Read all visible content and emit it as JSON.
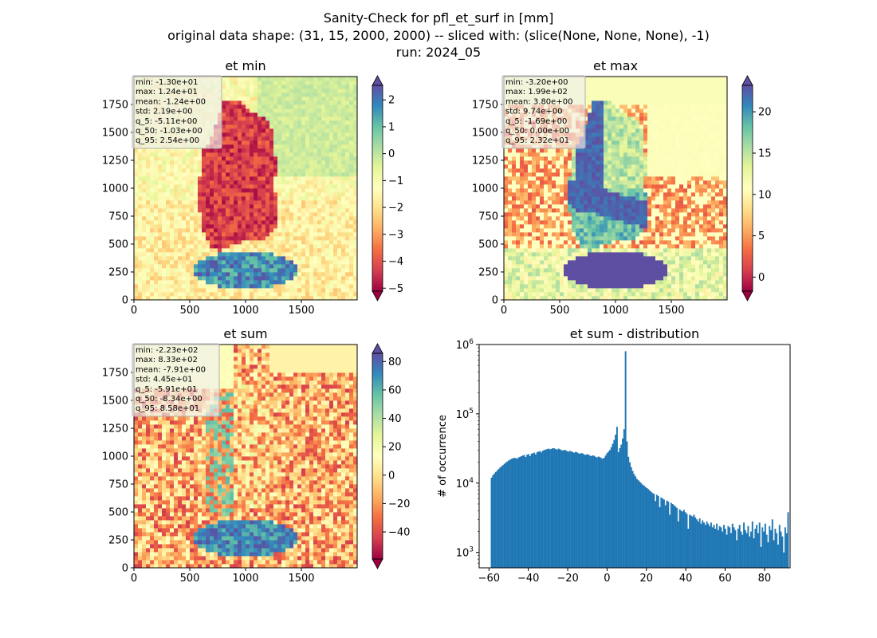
{
  "figure": {
    "title_lines": [
      "Sanity-Check for pfl_et_surf in [mm]",
      "original data shape: (31, 15, 2000, 2000) -- sliced with: (slice(None, None, None), -1)",
      "run: 2024_05"
    ]
  },
  "colors": {
    "spectral": [
      "#9e0142",
      "#d53e4f",
      "#f46d43",
      "#fdae61",
      "#fee08b",
      "#ffffbf",
      "#e6f598",
      "#abdda4",
      "#66c2a5",
      "#3288bd",
      "#5e4fa2"
    ],
    "hist_bar": "#1f77b4",
    "stats_box_bg": "#f0f0f0",
    "stats_box_border": "#b0b0b0"
  },
  "chart_data": [
    {
      "type": "heatmap",
      "title": "et min",
      "xlim": [
        0,
        2000
      ],
      "ylim": [
        0,
        2000
      ],
      "xticks": [
        "0",
        "500",
        "1000",
        "1500"
      ],
      "yticks": [
        "0",
        "250",
        "500",
        "750",
        "1000",
        "1250",
        "1500",
        "1750"
      ],
      "colormap": "Spectral",
      "clim": [
        -5.11,
        2.54
      ],
      "colorbar_ticks": [
        "2",
        "1",
        "0",
        "−1",
        "−2",
        "−3",
        "−4",
        "−5"
      ],
      "colorbar_tick_values": [
        2,
        1,
        0,
        -1,
        -2,
        -3,
        -4,
        -5
      ],
      "stats": [
        "min: -1.30e+01",
        "max: 1.24e+01",
        "mean: -1.24e+00",
        "std: 2.19e+00",
        "q_5: -5.11e+00",
        "q_50: -1.03e+00",
        "q_95: 2.54e+00"
      ],
      "texture": "min"
    },
    {
      "type": "heatmap",
      "title": "et max",
      "xlim": [
        0,
        2000
      ],
      "ylim": [
        0,
        2000
      ],
      "xticks": [
        "0",
        "500",
        "1000",
        "1500"
      ],
      "yticks": [
        "0",
        "250",
        "500",
        "750",
        "1000",
        "1250",
        "1500",
        "1750"
      ],
      "colormap": "Spectral",
      "clim": [
        -1.69,
        23.2
      ],
      "colorbar_ticks": [
        "20",
        "15",
        "10",
        "5",
        "0"
      ],
      "colorbar_tick_values": [
        20,
        15,
        10,
        5,
        0
      ],
      "stats": [
        "min: -3.20e+00",
        "max: 1.99e+02",
        "mean: 3.80e+00",
        "std: 9.74e+00",
        "q_5: -1.69e+00",
        "q_50: 0.00e+00",
        "q_95: 2.32e+01"
      ],
      "texture": "max"
    },
    {
      "type": "heatmap",
      "title": "et sum",
      "xlim": [
        0,
        2000
      ],
      "ylim": [
        0,
        2000
      ],
      "xticks": [
        "0",
        "500",
        "1000",
        "1500"
      ],
      "yticks": [
        "0",
        "250",
        "500",
        "750",
        "1000",
        "1250",
        "1500",
        "1750"
      ],
      "colormap": "Spectral",
      "clim": [
        -59.1,
        85.8
      ],
      "colorbar_ticks": [
        "80",
        "60",
        "40",
        "20",
        "0",
        "−20",
        "−40"
      ],
      "colorbar_tick_values": [
        80,
        60,
        40,
        20,
        0,
        -20,
        -40
      ],
      "stats": [
        "min: -2.23e+02",
        "max: 8.33e+02",
        "mean: -7.91e+00",
        "std: 4.45e+01",
        "q_5: -5.91e+01",
        "q_50: -8.34e+00",
        "q_95: 8.58e+01"
      ],
      "texture": "sum"
    },
    {
      "type": "bar",
      "title": "et sum - distribution",
      "xlabel": "",
      "ylabel": "# of occurrence",
      "yscale": "log",
      "xlim": [
        -65,
        93
      ],
      "ylim": [
        600,
        1000000
      ],
      "xticks": [
        -60,
        -40,
        -20,
        0,
        20,
        40,
        60,
        80
      ],
      "xtick_labels": [
        "−60",
        "−40",
        "−20",
        "0",
        "20",
        "40",
        "60",
        "80"
      ],
      "yticks": [
        1000,
        10000,
        100000,
        1000000
      ],
      "ytick_labels": [
        "10^3",
        "10^4",
        "10^5",
        "10^6"
      ],
      "bin_start": -59.1,
      "bin_width": 0.7245,
      "counts": [
        12000,
        13000,
        13800,
        14500,
        15200,
        16000,
        16800,
        17500,
        18200,
        19000,
        19800,
        20500,
        21200,
        21800,
        22400,
        22800,
        23200,
        23000,
        22500,
        23500,
        24000,
        24600,
        25000,
        25500,
        23800,
        25800,
        26200,
        24500,
        26500,
        27000,
        27500,
        26000,
        28000,
        28500,
        29000,
        27800,
        29500,
        30000,
        30500,
        31000,
        31500,
        30800,
        31200,
        32000,
        31800,
        31000,
        30500,
        31500,
        30800,
        30000,
        29500,
        30200,
        29800,
        29000,
        28500,
        29200,
        28800,
        28000,
        27500,
        28200,
        27800,
        27000,
        26500,
        27200,
        26800,
        26000,
        25500,
        26200,
        25800,
        25000,
        24500,
        25200,
        24800,
        24000,
        23500,
        24200,
        23800,
        23000,
        22500,
        23200,
        25000,
        27000,
        28500,
        30000,
        33000,
        37000,
        42000,
        50000,
        65000,
        28000,
        32000,
        36000,
        44000,
        60000,
        800000,
        40000,
        24000,
        20000,
        17000,
        15000,
        13500,
        12500,
        11500,
        11000,
        10500,
        10000,
        9500,
        9200,
        8800,
        8500,
        8200,
        7800,
        7500,
        7200,
        7000,
        5500,
        6800,
        6500,
        4500,
        6200,
        6000,
        5800,
        4800,
        5600,
        5400,
        3500,
        5200,
        5000,
        4800,
        4600,
        4400,
        2800,
        4200,
        4000,
        3900,
        4100,
        3800,
        3600,
        2200,
        3500,
        3400,
        3300,
        3500,
        3200,
        3000,
        2800,
        3100,
        2600,
        2900,
        2700,
        2500,
        2800,
        2600,
        2400,
        2700,
        2300,
        2500,
        2200,
        2600,
        2100,
        2400,
        2300,
        2000,
        2500,
        2200,
        1800,
        2400,
        2300,
        1900,
        2600,
        2300,
        2100,
        1500,
        2200,
        2500,
        2000,
        1800,
        2700,
        2100,
        1900,
        2400,
        1700,
        2000,
        2800,
        1600,
        2200,
        2500,
        1900,
        2700,
        1200,
        2300,
        2000,
        2600,
        1800,
        1400,
        2400,
        2100,
        3000,
        1500,
        2200,
        1900,
        1300,
        2500,
        2000,
        1700,
        1000,
        2300,
        1900,
        3800
      ]
    }
  ]
}
